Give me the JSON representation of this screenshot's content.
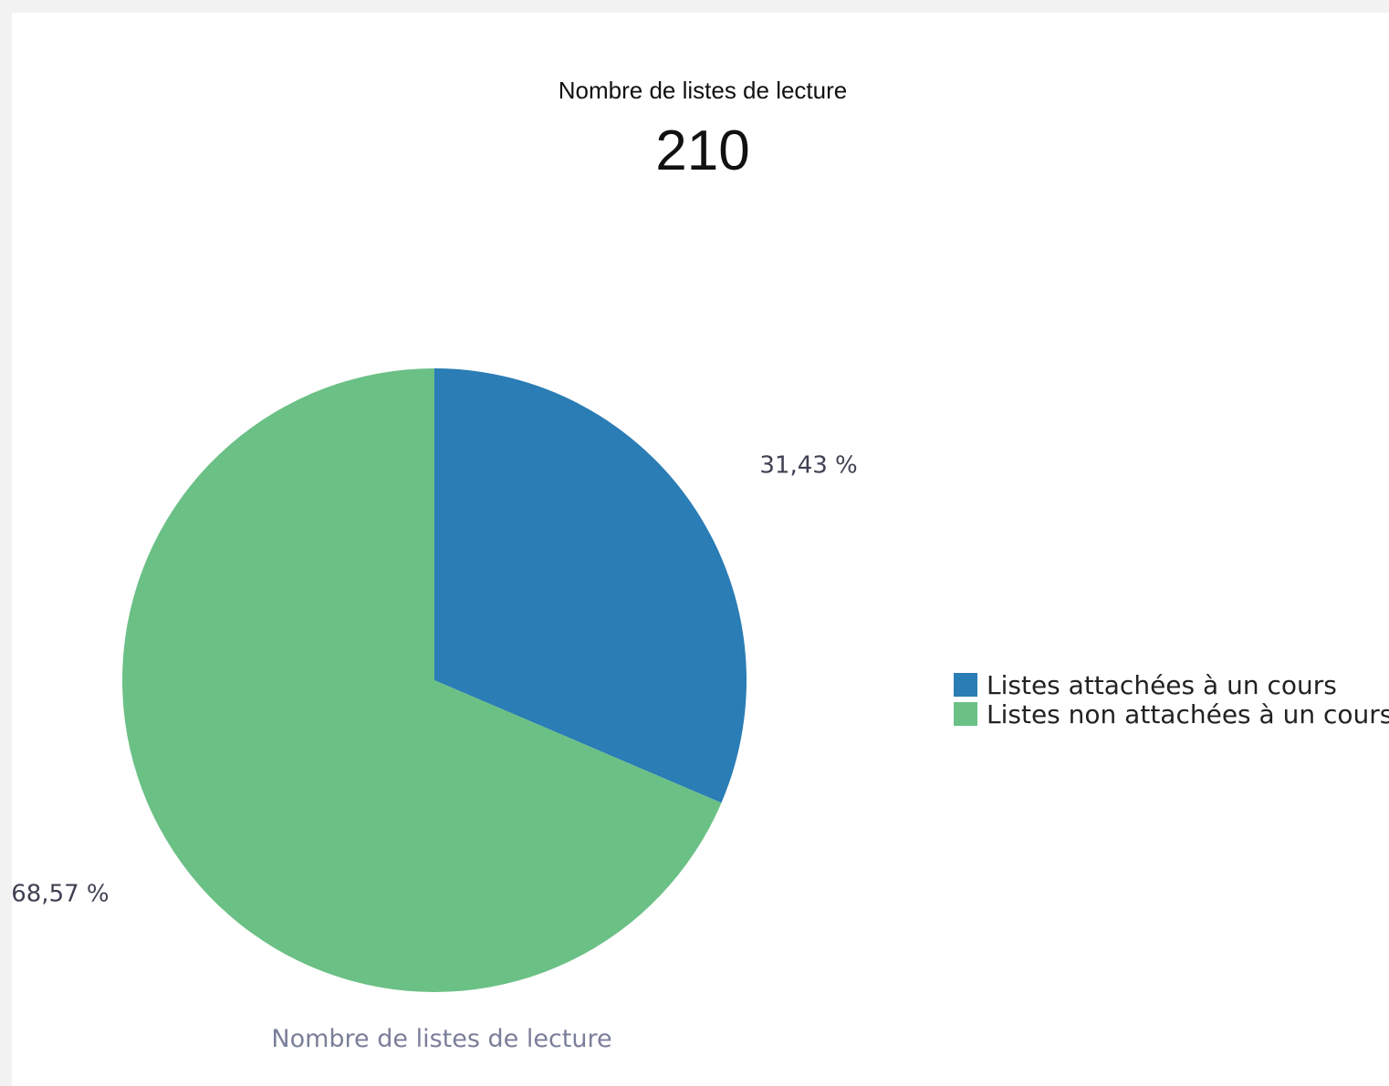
{
  "header": {
    "title": "Nombre de listes de lecture",
    "value": "210"
  },
  "chart_data": {
    "type": "pie",
    "title": "Nombre de listes de lecture",
    "categories": [
      "Listes attachées à un cours",
      "Listes non attachées à un cours"
    ],
    "values": [
      31.43,
      68.57
    ],
    "value_labels": [
      "31,43 %",
      "68,57 %"
    ],
    "colors": [
      "#2a7db5",
      "#6bc085"
    ],
    "legend_position": "right",
    "start": "top, clockwise"
  }
}
